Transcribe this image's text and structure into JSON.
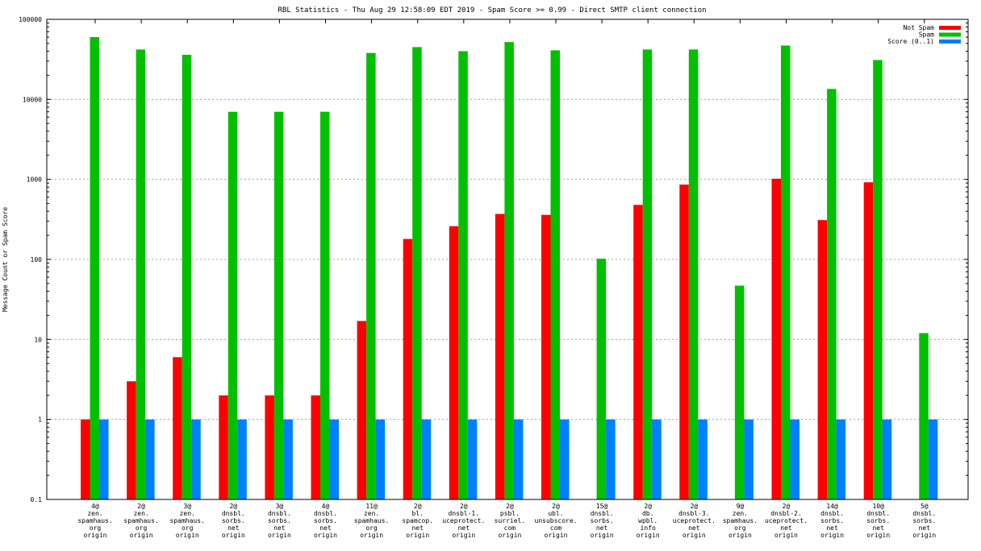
{
  "chart_data": {
    "type": "bar",
    "title": "RBL Statistics - Thu Aug 29 12:58:09 EDT 2019 - Spam Score >= 0.99 - Direct SMTP client connection",
    "ylabel": "Message Count or Spam Score",
    "xlabel": "",
    "yscale": "log",
    "ylim": [
      0.1,
      100000
    ],
    "yticks": [
      "0.1",
      "1",
      "10",
      "100",
      "1000",
      "10000",
      "100000"
    ],
    "grid": true,
    "legend_position": "top-right",
    "categories": [
      [
        "4@",
        "zen.",
        "spamhaus.",
        "org",
        "origin"
      ],
      [
        "2@",
        "zen.",
        "spamhaus.",
        "org",
        "origin"
      ],
      [
        "3@",
        "zen.",
        "spamhaus.",
        "org",
        "origin"
      ],
      [
        "2@",
        "dnsbl.",
        "sorbs.",
        "net",
        "origin"
      ],
      [
        "3@",
        "dnsbl.",
        "sorbs.",
        "net",
        "origin"
      ],
      [
        "4@",
        "dnsbl.",
        "sorbs.",
        "net",
        "origin"
      ],
      [
        "11@",
        "zen.",
        "spamhaus.",
        "org",
        "origin"
      ],
      [
        "2@",
        "bl.",
        "spamcop.",
        "net",
        "origin"
      ],
      [
        "2@",
        "dnsbl-1.",
        "uceprotect.",
        "net",
        "origin"
      ],
      [
        "2@",
        "psbl.",
        "surriel.",
        "com",
        "origin"
      ],
      [
        "2@",
        "ubl.",
        "unsubscore.",
        "com",
        "origin"
      ],
      [
        "15@",
        "dnsbl.",
        "sorbs.",
        "net",
        "origin"
      ],
      [
        "2@",
        "db.",
        "wpbl.",
        "info",
        "origin"
      ],
      [
        "2@",
        "dnsbl-3.",
        "uceprotect.",
        "net",
        "origin"
      ],
      [
        "9@",
        "zen.",
        "spamhaus.",
        "org",
        "origin"
      ],
      [
        "2@",
        "dnsbl-2.",
        "uceprotect.",
        "net",
        "origin"
      ],
      [
        "14@",
        "dnsbl.",
        "sorbs.",
        "net",
        "origin"
      ],
      [
        "10@",
        "dnsbl.",
        "sorbs.",
        "net",
        "origin"
      ],
      [
        "5@",
        "dnsbl.",
        "sorbs.",
        "net",
        "origin"
      ]
    ],
    "series": [
      {
        "name": "Not Spam",
        "color": "#ff0000",
        "values": [
          1,
          3,
          6,
          2,
          2,
          2,
          17,
          180,
          260,
          370,
          360,
          null,
          480,
          860,
          null,
          1020,
          310,
          920,
          null
        ]
      },
      {
        "name": "Spam",
        "color": "#00c000",
        "values": [
          60000,
          42000,
          36000,
          7000,
          7000,
          7000,
          38000,
          45000,
          40000,
          52000,
          41000,
          102,
          42000,
          42000,
          47,
          47000,
          13500,
          31000,
          12
        ]
      },
      {
        "name": "Score (0..1)",
        "color": "#0080ff",
        "values": [
          1,
          1,
          1,
          1,
          1,
          1,
          1,
          1,
          1,
          1,
          1,
          1,
          1,
          1,
          1,
          1,
          1,
          1,
          1
        ]
      }
    ]
  }
}
